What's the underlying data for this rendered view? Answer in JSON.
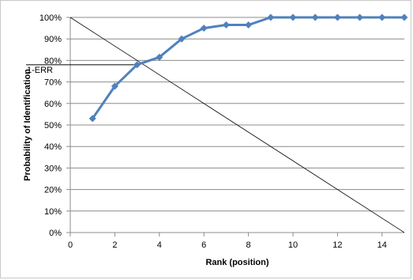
{
  "chart_data": {
    "type": "line",
    "title": "",
    "xlabel": "Rank (position)",
    "ylabel": "Probability of Identification",
    "xlim": [
      0,
      15
    ],
    "ylim": [
      0,
      100
    ],
    "x_ticks": [
      0,
      2,
      4,
      6,
      8,
      10,
      12,
      14
    ],
    "x_tick_labels": [
      "0",
      "2",
      "4",
      "6",
      "8",
      "10",
      "12",
      "14"
    ],
    "y_ticks": [
      0,
      10,
      20,
      30,
      40,
      50,
      60,
      70,
      80,
      90,
      100
    ],
    "y_tick_labels": [
      "0%",
      "10%",
      "20%",
      "30%",
      "40%",
      "50%",
      "60%",
      "70%",
      "80%",
      "90%",
      "100%"
    ],
    "grid": {
      "horizontal": true,
      "vertical": false
    },
    "legend": "none",
    "series": [
      {
        "x": [
          1,
          2,
          3,
          4,
          5,
          6,
          7,
          8,
          9,
          10,
          11,
          12,
          13,
          14,
          15
        ],
        "values": [
          53,
          68,
          78,
          81.5,
          90,
          95,
          96.5,
          96.5,
          100,
          100,
          100,
          100,
          100,
          100,
          100
        ],
        "color": "#4f81bd",
        "marker": "diamond"
      }
    ],
    "annotations": [
      {
        "type": "diagonal-line",
        "from": [
          0,
          100
        ],
        "to": [
          15,
          0
        ],
        "color": "#000000"
      },
      {
        "type": "horizontal-segment",
        "label": "1-ERR",
        "y": 78,
        "x_from": 0,
        "x_to": 3,
        "color": "#000000"
      }
    ]
  }
}
